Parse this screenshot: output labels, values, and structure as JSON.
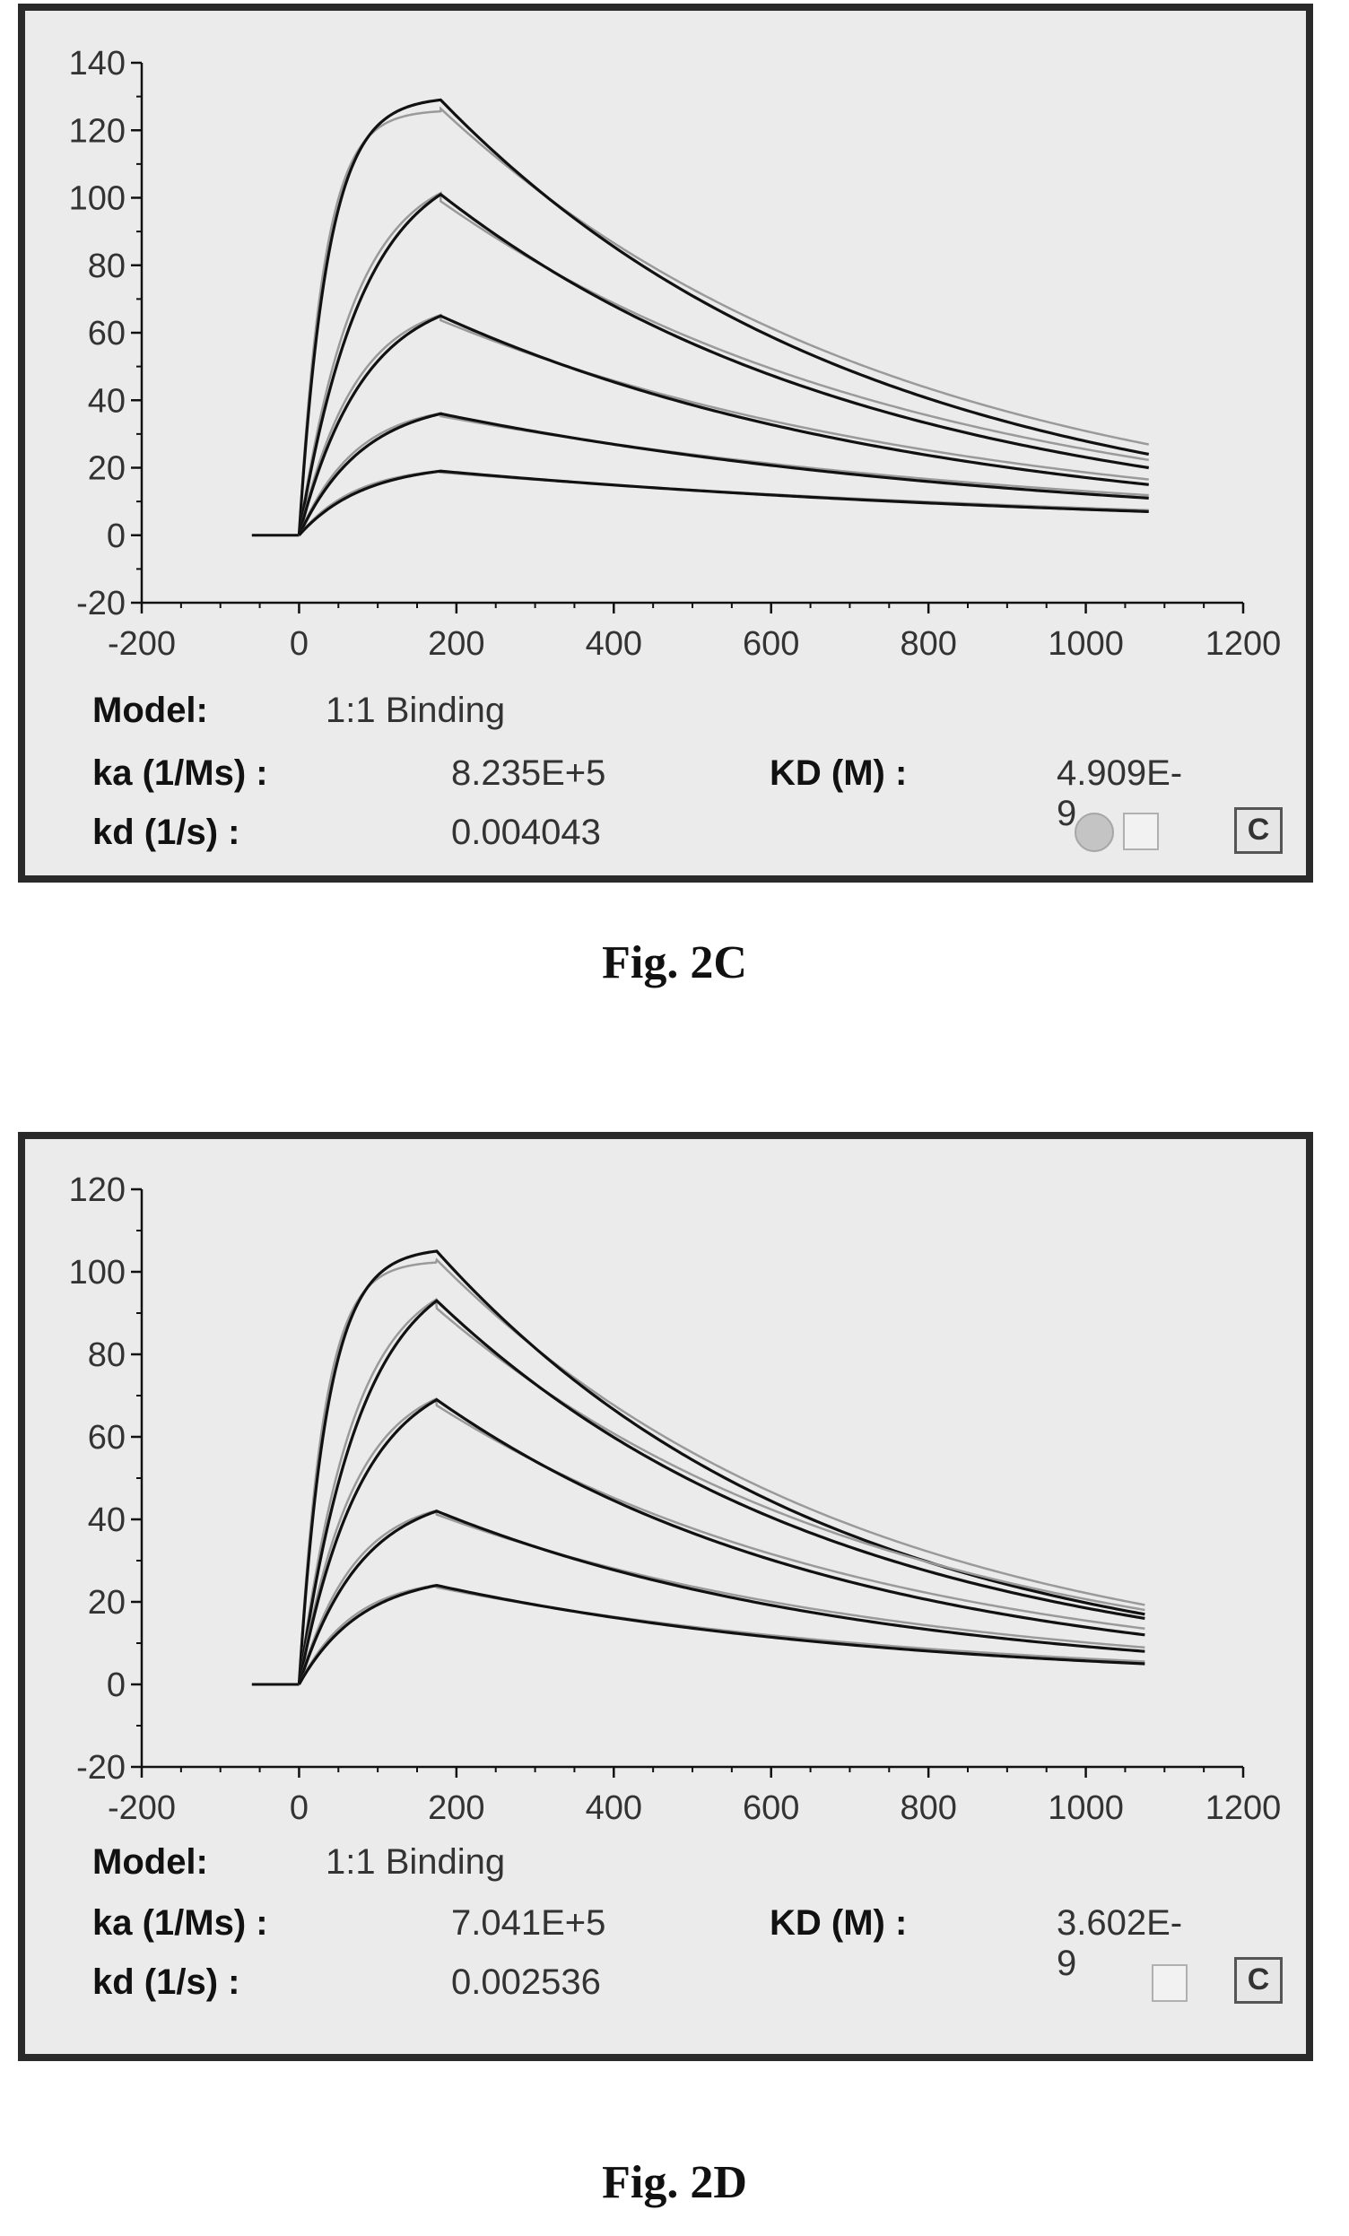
{
  "chart_data": [
    {
      "type": "line",
      "xlim": [
        -200,
        1200
      ],
      "ylim": [
        -20,
        140
      ],
      "x_ticks": [
        -200,
        0,
        200,
        400,
        600,
        800,
        1000,
        1200
      ],
      "y_ticks": [
        -20,
        0,
        20,
        40,
        60,
        80,
        100,
        120,
        140
      ],
      "association_end": 180,
      "x_end": 1080,
      "curves": [
        {
          "peak": 129,
          "end": 24
        },
        {
          "peak": 101,
          "end": 20
        },
        {
          "peak": 65,
          "end": 15
        },
        {
          "peak": 36,
          "end": 11
        },
        {
          "peak": 19,
          "end": 7
        }
      ],
      "model_label": "Model:",
      "model_value": "1:1 Binding",
      "ka_label": "ka (1/Ms) :",
      "ka_value": "8.235E+5",
      "KD_label": "KD (M) :",
      "KD_value": "4.909E-9",
      "kd_label": "kd (1/s) :",
      "kd_value": "0.004043",
      "caption": "Fig. 2C"
    },
    {
      "type": "line",
      "xlim": [
        -200,
        1200
      ],
      "ylim": [
        -20,
        120
      ],
      "x_ticks": [
        -200,
        0,
        200,
        400,
        600,
        800,
        1000,
        1200
      ],
      "y_ticks": [
        -20,
        0,
        20,
        40,
        60,
        80,
        100,
        120
      ],
      "association_end": 175,
      "x_end": 1075,
      "curves": [
        {
          "peak": 105,
          "end": 17
        },
        {
          "peak": 93,
          "end": 16
        },
        {
          "peak": 69,
          "end": 12
        },
        {
          "peak": 42,
          "end": 8
        },
        {
          "peak": 24,
          "end": 5
        }
      ],
      "model_label": "Model:",
      "model_value": "1:1 Binding",
      "ka_label": "ka (1/Ms) :",
      "ka_value": "7.041E+5",
      "KD_label": "KD (M) :",
      "KD_value": "3.602E-9",
      "kd_label": "kd (1/s) :",
      "kd_value": "0.002536",
      "caption": "Fig. 2D"
    }
  ]
}
